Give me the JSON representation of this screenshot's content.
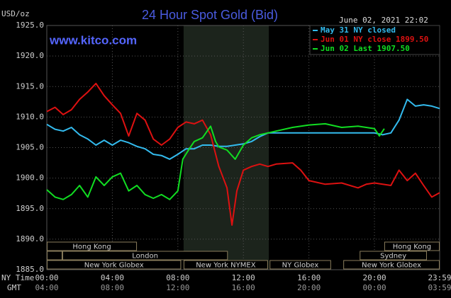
{
  "chart_data": {
    "type": "line",
    "title": "24 Hour Spot Gold (Bid)",
    "subtitle": "www.kitco.com",
    "timestamp": "June 02, 2021 22:02",
    "ylabel": "USD/oz",
    "xlabel": "NY Time",
    "x2label": "GMT",
    "xlim": [
      0,
      23.98
    ],
    "ylim": [
      1885,
      1925
    ],
    "yticks": [
      {
        "value": 1885,
        "label": "1885.0"
      },
      {
        "value": 1890,
        "label": "1890.0"
      },
      {
        "value": 1895,
        "label": "1895.0"
      },
      {
        "value": 1900,
        "label": "1900.0"
      },
      {
        "value": 1905,
        "label": "1905.0"
      },
      {
        "value": 1910,
        "label": "1910.0"
      },
      {
        "value": 1915,
        "label": "1915.0"
      },
      {
        "value": 1920,
        "label": "1920.0"
      },
      {
        "value": 1925,
        "label": "1925.0"
      }
    ],
    "xticks": [
      {
        "value": 0,
        "label": "00:00"
      },
      {
        "value": 4,
        "label": "04:00"
      },
      {
        "value": 8,
        "label": "08:00"
      },
      {
        "value": 12,
        "label": "12:00"
      },
      {
        "value": 16,
        "label": "16:00"
      },
      {
        "value": 20,
        "label": "20:00"
      },
      {
        "value": 23.98,
        "label": "23:59"
      }
    ],
    "x2tick_labels": [
      "04:00",
      "08:00",
      "12:00",
      "16:00",
      "20:00",
      "00:00",
      "03:59"
    ],
    "grid": true,
    "legend": "upper right",
    "shaded_x": [
      8.35,
      13.55
    ],
    "sessions": [
      {
        "label": "Hong Kong",
        "start": 0,
        "end": 5.5,
        "row": 0
      },
      {
        "label": "Hong Kong",
        "start": 20.6,
        "end": 23.98,
        "row": 0
      },
      {
        "label": null,
        "start": 0,
        "end": 0.95,
        "row": 1
      },
      {
        "label": "London",
        "start": 0.95,
        "end": 11.05,
        "row": 1
      },
      {
        "label": "Sydney",
        "start": 19.1,
        "end": 23.2,
        "row": 1
      },
      {
        "label": "New York Globex",
        "start": 0,
        "end": 8.2,
        "row": 2
      },
      {
        "label": "New York NYMEX",
        "start": 8.35,
        "end": 13.5,
        "row": 2
      },
      {
        "label": "NY Globex",
        "start": 13.6,
        "end": 17.35,
        "row": 2
      },
      {
        "label": "New York Globex",
        "start": 18.1,
        "end": 23.98,
        "row": 2
      }
    ],
    "series": [
      {
        "name": "May 31 NY closed",
        "color": "#33bbee",
        "x": [
          0,
          0.5,
          1,
          1.5,
          2,
          2.5,
          3,
          3.5,
          4,
          4.5,
          5,
          5.5,
          6,
          6.5,
          7,
          7.5,
          8,
          8.5,
          9,
          9.5,
          10,
          10.5,
          11,
          11.5,
          12,
          12.5,
          13,
          13.5,
          14,
          15,
          16,
          17,
          18,
          19,
          20,
          20.5,
          21,
          21.5,
          22,
          22.5,
          23,
          23.5,
          23.98
        ],
        "values": [
          1908.8,
          1908.0,
          1907.7,
          1908.3,
          1907.1,
          1906.4,
          1905.4,
          1906.2,
          1905.4,
          1906.2,
          1905.8,
          1905.2,
          1904.8,
          1903.9,
          1903.7,
          1903.1,
          1903.9,
          1904.8,
          1904.8,
          1905.4,
          1905.4,
          1905.2,
          1905.2,
          1905.4,
          1905.6,
          1906.0,
          1906.8,
          1907.4,
          1907.4,
          1907.4,
          1907.4,
          1907.4,
          1907.4,
          1907.4,
          1907.4,
          1907.1,
          1907.4,
          1909.5,
          1912.9,
          1911.8,
          1912.0,
          1911.8,
          1911.4
        ]
      },
      {
        "name": "Jun 01 NY close 1899.50",
        "color": "#dd1111",
        "x": [
          0,
          0.5,
          1,
          1.5,
          2,
          2.5,
          3,
          3.5,
          4,
          4.5,
          5,
          5.5,
          6,
          6.5,
          7,
          7.5,
          8,
          8.5,
          9,
          9.5,
          10,
          10.5,
          11,
          11.3,
          11.6,
          12,
          12.5,
          13,
          13.5,
          14,
          15,
          15.5,
          16,
          17,
          18,
          19,
          19.5,
          20,
          21,
          21.5,
          22,
          22.5,
          23,
          23.5,
          23.98
        ],
        "values": [
          1910.9,
          1911.6,
          1910.4,
          1911.2,
          1912.9,
          1914.1,
          1915.5,
          1913.5,
          1912.0,
          1910.6,
          1906.9,
          1910.6,
          1909.5,
          1906.4,
          1905.4,
          1906.4,
          1908.3,
          1909.2,
          1908.9,
          1909.5,
          1907.1,
          1901.9,
          1898.4,
          1892.3,
          1897.9,
          1901.3,
          1901.9,
          1902.3,
          1901.9,
          1902.3,
          1902.5,
          1901.3,
          1899.6,
          1899.0,
          1899.2,
          1898.4,
          1899.0,
          1899.2,
          1898.8,
          1901.3,
          1899.6,
          1900.8,
          1898.8,
          1896.9,
          1897.6
        ]
      },
      {
        "name": "Jun 02 Last 1907.50",
        "color": "#11dd22",
        "x": [
          0,
          0.5,
          1,
          1.5,
          2,
          2.5,
          3,
          3.5,
          4,
          4.5,
          5,
          5.5,
          6,
          6.5,
          7,
          7.5,
          8,
          8.3,
          8.7,
          9,
          9.5,
          10,
          10.3,
          10.5,
          11,
          11.5,
          12,
          12.5,
          13,
          14,
          15,
          16,
          17,
          18,
          19,
          20,
          20.3,
          20.6
        ],
        "values": [
          1898.1,
          1896.9,
          1896.5,
          1897.3,
          1898.8,
          1896.9,
          1900.2,
          1898.8,
          1900.2,
          1900.8,
          1897.9,
          1898.8,
          1897.3,
          1896.7,
          1897.3,
          1896.5,
          1897.9,
          1903.1,
          1904.8,
          1906.0,
          1906.6,
          1908.5,
          1906.0,
          1905.1,
          1904.6,
          1903.1,
          1905.4,
          1906.6,
          1907.1,
          1907.7,
          1908.3,
          1908.7,
          1908.9,
          1908.3,
          1908.5,
          1908.1,
          1906.9,
          1908.1
        ]
      }
    ]
  }
}
